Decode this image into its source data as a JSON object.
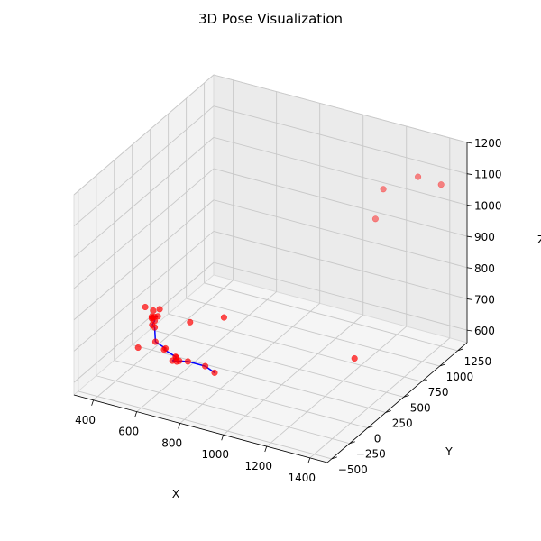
{
  "chart_data": {
    "type": "scatter",
    "title": "3D Pose Visualization",
    "xlabel": "X",
    "ylabel": "Y",
    "zlabel": "Z",
    "xlim": [
      310,
      1480
    ],
    "ylim": [
      -560,
      1380
    ],
    "zlim": [
      560,
      1200
    ],
    "xticks": [
      400,
      600,
      800,
      1000,
      1200,
      1400
    ],
    "yticks": [
      -500,
      -250,
      0,
      250,
      500,
      750,
      1000,
      1250
    ],
    "zticks": [
      600,
      700,
      800,
      900,
      1000,
      1100,
      1200
    ],
    "grid": true,
    "point_color": "#ff0000",
    "line_color": "#0000ff",
    "points": [
      {
        "x": 380,
        "y": 220,
        "z": 700
      },
      {
        "x": 420,
        "y": 210,
        "z": 698
      },
      {
        "x": 440,
        "y": 240,
        "z": 700
      },
      {
        "x": 445,
        "y": 200,
        "z": 686
      },
      {
        "x": 430,
        "y": 170,
        "z": 685
      },
      {
        "x": 440,
        "y": 130,
        "z": 698
      },
      {
        "x": 450,
        "y": 100,
        "z": 700
      },
      {
        "x": 460,
        "y": 110,
        "z": 705
      },
      {
        "x": 470,
        "y": 80,
        "z": 700
      },
      {
        "x": 465,
        "y": 60,
        "z": 690
      },
      {
        "x": 480,
        "y": 50,
        "z": 687
      },
      {
        "x": 520,
        "y": -60,
        "z": 670
      },
      {
        "x": 570,
        "y": -70,
        "z": 660
      },
      {
        "x": 580,
        "y": -120,
        "z": 668
      },
      {
        "x": 640,
        "y": -140,
        "z": 660
      },
      {
        "x": 650,
        "y": -160,
        "z": 663
      },
      {
        "x": 645,
        "y": -200,
        "z": 660
      },
      {
        "x": 665,
        "y": -200,
        "z": 661
      },
      {
        "x": 670,
        "y": -180,
        "z": 660
      },
      {
        "x": 700,
        "y": -150,
        "z": 658
      },
      {
        "x": 770,
        "y": -120,
        "z": 650
      },
      {
        "x": 830,
        "y": -170,
        "z": 650
      },
      {
        "x": 470,
        "y": -150,
        "z": 660
      },
      {
        "x": 600,
        "y": 180,
        "z": 700
      },
      {
        "x": 700,
        "y": 350,
        "z": 700
      },
      {
        "x": 1200,
        "y": 660,
        "z": 600
      },
      {
        "x": 1150,
        "y": 1100,
        "z": 950
      },
      {
        "x": 1120,
        "y": 1300,
        "z": 1000
      },
      {
        "x": 1320,
        "y": 1180,
        "z": 1100
      },
      {
        "x": 1420,
        "y": 1200,
        "z": 1090
      }
    ],
    "bones": [
      [
        4,
        3
      ],
      [
        3,
        5
      ],
      [
        5,
        6
      ],
      [
        6,
        7
      ],
      [
        7,
        8
      ],
      [
        8,
        9
      ],
      [
        9,
        10
      ],
      [
        10,
        11
      ],
      [
        11,
        12
      ],
      [
        12,
        13
      ],
      [
        13,
        14
      ],
      [
        14,
        15
      ],
      [
        15,
        16
      ],
      [
        16,
        17
      ],
      [
        17,
        18
      ],
      [
        18,
        19
      ],
      [
        19,
        20
      ],
      [
        20,
        21
      ]
    ]
  }
}
